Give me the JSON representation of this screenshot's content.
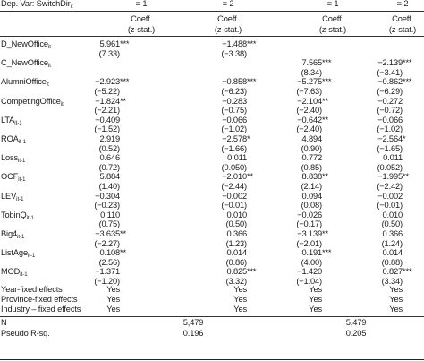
{
  "header": {
    "dep_var": "Dep. Var: SwitchDir",
    "dep_var_sub": "it",
    "columns": [
      "= 1",
      "= 2",
      "= 1",
      "= 2"
    ],
    "coeff_label": "Coeff.",
    "zstat_label": "(z-stat.)"
  },
  "rows": [
    {
      "name": "D_NewOffice",
      "sub": "it",
      "coef": [
        "5.961***",
        "−1.488***",
        "",
        ""
      ],
      "z": [
        "(7.33)",
        "(−3.38)",
        "",
        ""
      ]
    },
    {
      "name": "C_NewOffice",
      "sub": "it",
      "coef": [
        "",
        "",
        "7.565***",
        "−2.139***"
      ],
      "z": [
        "",
        "",
        "(8.34)",
        "(−3.41)"
      ]
    },
    {
      "name": "AlumniOffice",
      "sub": "it",
      "coef": [
        "−2.923***",
        "−0.858***",
        "−5.275***",
        "−0.862***"
      ],
      "z": [
        "(−5.22)",
        "(−6.23)",
        "(−7.63)",
        "(−6.29)"
      ]
    },
    {
      "name": "CompetingOffice",
      "sub": "it",
      "coef": [
        "−1.824**",
        "−0.283",
        "−2.104**",
        "−0.272"
      ],
      "z": [
        "(−2.21)",
        "(−0.75)",
        "(−2.40)",
        "(−0.72)"
      ]
    },
    {
      "name": "LTA",
      "sub": "it-1",
      "coef": [
        "−0.409",
        "−0.066",
        "−0.642**",
        "−0.066"
      ],
      "z": [
        "(−1.52)",
        "(−1.02)",
        "(−2.40)",
        "(−1.02)"
      ]
    },
    {
      "name": "ROA",
      "sub": "it-1",
      "coef": [
        "2.919",
        "−2.578*",
        "4.894",
        "−2.564*"
      ],
      "z": [
        "(0.52)",
        "(−1.66)",
        "(0.90)",
        "(−1.65)"
      ]
    },
    {
      "name": "Loss",
      "sub": "it-1",
      "coef": [
        "0.646",
        "0.011",
        "0.772",
        "0.011"
      ],
      "z": [
        "(0.72)",
        "(0.050)",
        "(0.85)",
        "(0.052)"
      ]
    },
    {
      "name": "OCF",
      "sub": "it-1",
      "coef": [
        "5.884",
        "−2.010**",
        "8.838**",
        "−1.995**"
      ],
      "z": [
        "(1.40)",
        "(−2.44)",
        "(2.14)",
        "(−2.42)"
      ]
    },
    {
      "name": "LEV",
      "sub": "it-1",
      "coef": [
        "−0.304",
        "−0.002",
        "0.094",
        "−0.002"
      ],
      "z": [
        "(−0.23)",
        "(−0.01)",
        "(0.08)",
        "(−0.01)"
      ]
    },
    {
      "name": "TobinQ",
      "sub": "it-1",
      "coef": [
        "0.110",
        "0.010",
        "−0.026",
        "0.010"
      ],
      "z": [
        "(0.75)",
        "(0.50)",
        "(−0.17)",
        "(0.50)"
      ]
    },
    {
      "name": "Big4",
      "sub": "it-1",
      "coef": [
        "−3.635**",
        "0.366",
        "−3.139**",
        "0.366"
      ],
      "z": [
        "(−2.27)",
        "(1.23)",
        "(−2.01)",
        "(1.24)"
      ]
    },
    {
      "name": "ListAge",
      "sub": "it-1",
      "coef": [
        "0.108**",
        "0.014",
        "0.191***",
        "0.014"
      ],
      "z": [
        "(2.56)",
        "(0.86)",
        "(4.00)",
        "(0.88)"
      ]
    },
    {
      "name": "MOD",
      "sub": "it-1",
      "coef": [
        "−1.371",
        "0.825***",
        "−1.420",
        "0.827***"
      ],
      "z": [
        "(−1.20)",
        "(3.32)",
        "(−1.04)",
        "(3.34)"
      ]
    }
  ],
  "effects": [
    {
      "label": "Year-fixed effects",
      "vals": [
        "Yes",
        "Yes",
        "Yes",
        "Yes"
      ]
    },
    {
      "label": "Province-fixed effects",
      "vals": [
        "Yes",
        "Yes",
        "Yes",
        "Yes"
      ]
    },
    {
      "label": "Industry – fixed effects",
      "vals": [
        "Yes",
        "Yes",
        "Yes",
        "Yes"
      ]
    }
  ],
  "stats": [
    {
      "label": "N",
      "v1": "5,479",
      "v2": "5,479"
    },
    {
      "label": "Pseudo R-sq.",
      "v1": "0.196",
      "v2": "0.205"
    }
  ]
}
